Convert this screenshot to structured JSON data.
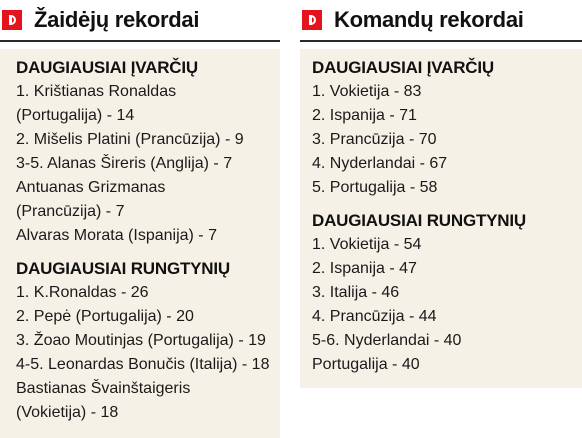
{
  "players": {
    "title": "Žaidėjų rekordai",
    "goals_title": "DAUGIAUSIAI ĮVARČIŲ",
    "goals_lines": [
      "1. Krištianas Ronaldas",
      "(Portugalija) - 14",
      "2. Mišelis Platini (Prancūzija) - 9",
      "3-5. Alanas Šireris (Anglija) - 7",
      "Antuanas Grizmanas",
      "(Prancūzija) - 7",
      "Alvaras Morata (Ispanija) - 7"
    ],
    "matches_title": "DAUGIAUSIAI RUNGTYNIŲ",
    "matches_lines": [
      "1. K.Ronaldas - 26",
      "2. Pepė (Portugalija) - 20",
      "3. Žoao Moutinjas (Portugalija) - 19",
      "4-5. Leonardas Bonučis (Italija) - 18",
      "Bastianas Švainštaigeris",
      "(Vokietija) - 18"
    ]
  },
  "teams": {
    "title": "Komandų rekordai",
    "goals_title": "DAUGIAUSIAI ĮVARČIŲ",
    "goals_lines": [
      "1. Vokietija - 83",
      "2. Ispanija - 71",
      "3. Prancūzija - 70",
      "4. Nyderlandai - 67",
      "5. Portugalija - 58"
    ],
    "matches_title": "DAUGIAUSIAI RUNGTYNIŲ",
    "matches_lines": [
      "1. Vokietija - 54",
      "2. Ispanija - 47",
      "3. Italija - 46",
      "4. Prancūzija - 44",
      "5-6. Nyderlandai - 40",
      "Portugalija - 40"
    ]
  },
  "colors": {
    "badge": "#e3141b",
    "box_bg": "#f6f1e6"
  },
  "icons": {
    "badge": "red-d-badge-icon"
  }
}
